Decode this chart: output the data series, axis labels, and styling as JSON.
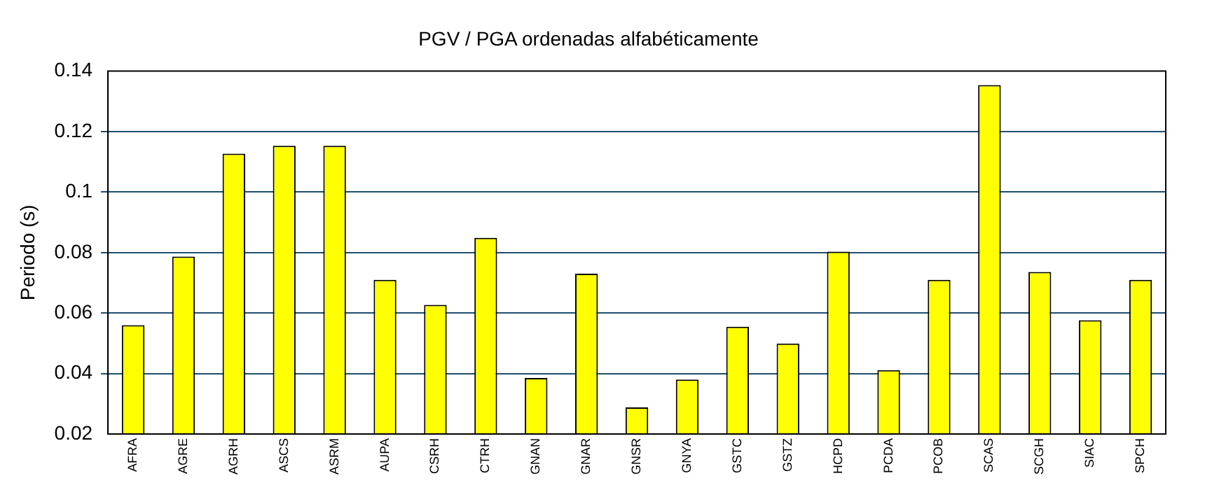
{
  "chart_data": {
    "type": "bar",
    "title": "PGV / PGA ordenadas alfabéticamente",
    "ylabel": "Periodo (s)",
    "categories": [
      "AFRA",
      "AGRE",
      "AGRH",
      "ASCS",
      "ASRM",
      "AUPA",
      "CSRH",
      "CTRH",
      "GNAN",
      "GNAR",
      "GNSR",
      "GNYA",
      "GSTC",
      "GSTZ",
      "HCPD",
      "PCDA",
      "PCOB",
      "SCAS",
      "SCGH",
      "SIAC",
      "SPCH"
    ],
    "values": [
      0.056,
      0.0787,
      0.1127,
      0.1153,
      0.1153,
      0.071,
      0.0627,
      0.0849,
      0.0385,
      0.073,
      0.0288,
      0.038,
      0.0555,
      0.0499,
      0.0803,
      0.0411,
      0.071,
      0.1354,
      0.0736,
      0.0576,
      0.071
    ],
    "color": "#ffff00",
    "ylim": [
      0.02,
      0.14
    ],
    "yticks": [
      0.02,
      0.04,
      0.06,
      0.08,
      {
        "value": 0.1,
        "label": "0.1"
      },
      0.12,
      0.14
    ],
    "grid": "y",
    "legend": false
  }
}
